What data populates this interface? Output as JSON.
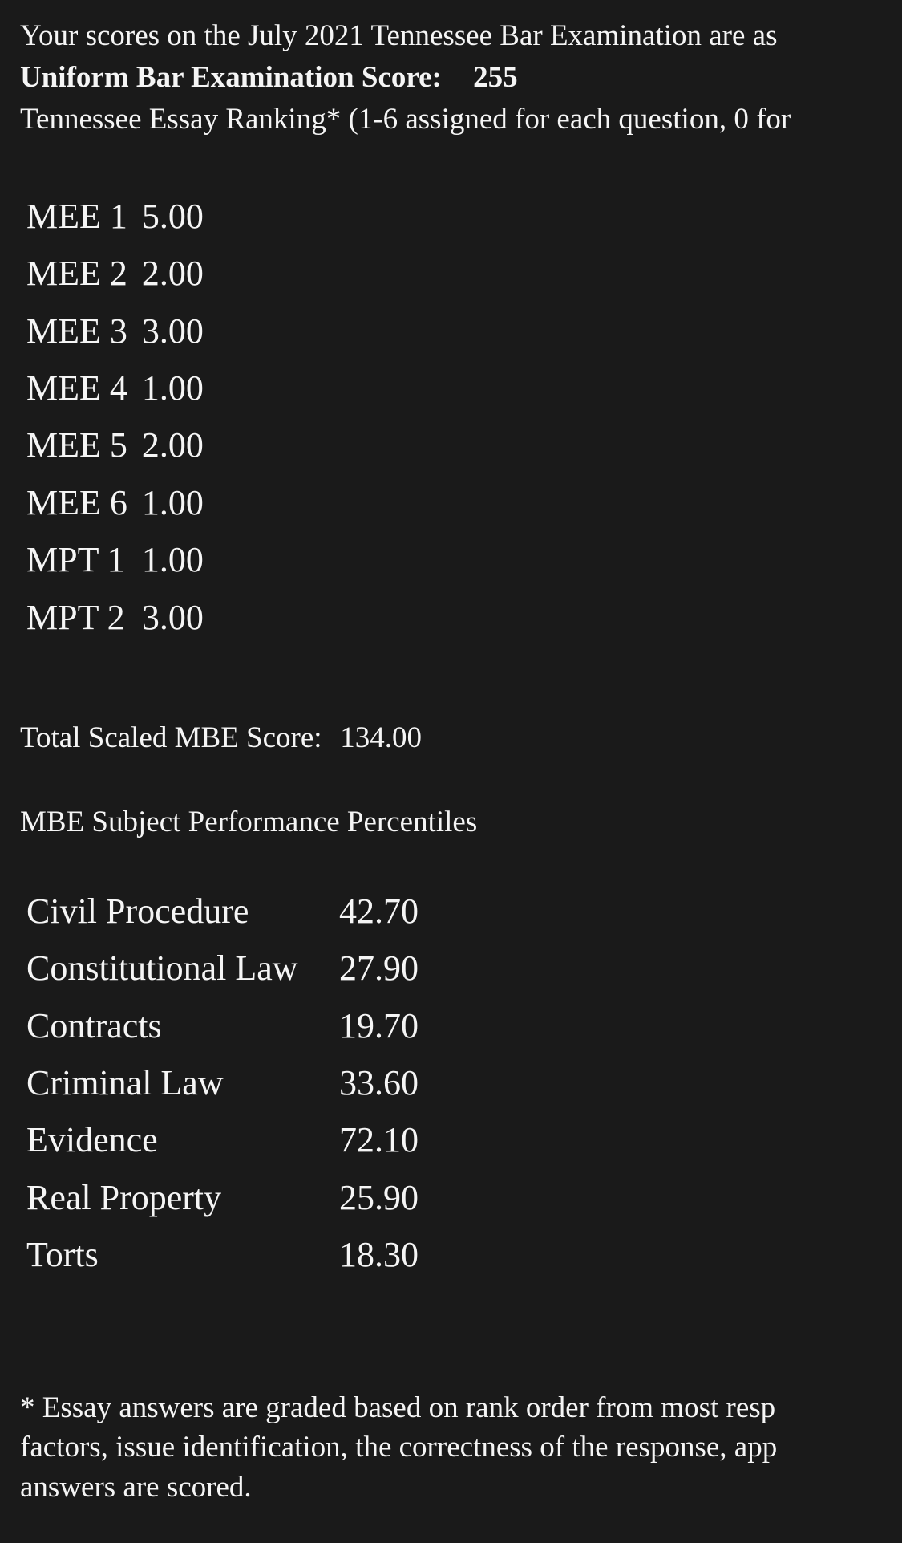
{
  "header": {
    "intro": "Your scores on the July 2021 Tennessee Bar Examination are as",
    "ube_label": "Uniform Bar Examination Score:",
    "ube_score": "255",
    "ranking_note": "Tennessee Essay Ranking* (1-6 assigned for each question, 0 for"
  },
  "essays": [
    {
      "label": "MEE 1",
      "score": "5.00"
    },
    {
      "label": "MEE 2",
      "score": "2.00"
    },
    {
      "label": "MEE 3",
      "score": "3.00"
    },
    {
      "label": "MEE 4",
      "score": "1.00"
    },
    {
      "label": "MEE 5",
      "score": "2.00"
    },
    {
      "label": "MEE 6",
      "score": "1.00"
    },
    {
      "label": "MPT 1",
      "score": "1.00"
    },
    {
      "label": "MPT 2",
      "score": "3.00"
    }
  ],
  "mbe_total": {
    "label": "Total Scaled MBE Score:",
    "value": "134.00"
  },
  "percentiles_heading": "MBE Subject Performance Percentiles",
  "percentiles": [
    {
      "label": "Civil Procedure",
      "value": "42.70"
    },
    {
      "label": "Constitutional Law",
      "value": "27.90"
    },
    {
      "label": "Contracts",
      "value": "19.70"
    },
    {
      "label": "Criminal Law",
      "value": "33.60"
    },
    {
      "label": "Evidence",
      "value": "72.10"
    },
    {
      "label": "Real Property",
      "value": "25.90"
    },
    {
      "label": "Torts",
      "value": "18.30"
    }
  ],
  "footnote": {
    "line1": "* Essay answers are graded based on rank order from most resp",
    "line2": "factors, issue identification, the correctness of the response, app",
    "line3": "answers are scored."
  }
}
